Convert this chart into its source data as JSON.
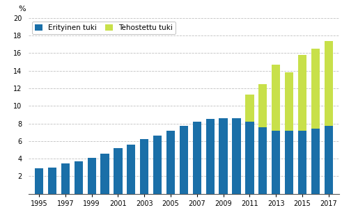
{
  "years": [
    1995,
    1996,
    1997,
    1998,
    1999,
    2000,
    2001,
    2002,
    2003,
    2004,
    2005,
    2006,
    2007,
    2008,
    2009,
    2010,
    2011,
    2012,
    2013,
    2014,
    2015,
    2016,
    2017
  ],
  "erityinen_tuki": [
    2.9,
    3.0,
    3.5,
    3.7,
    4.1,
    4.6,
    5.2,
    5.6,
    6.2,
    6.6,
    7.2,
    7.7,
    8.2,
    8.5,
    8.6,
    8.6,
    8.2,
    7.6,
    7.2,
    7.2,
    7.2,
    7.4,
    7.7
  ],
  "tehostettu_tuki": [
    0,
    0,
    0,
    0,
    0,
    0,
    0,
    0,
    0,
    0,
    0,
    0,
    0,
    0,
    0,
    0,
    3.1,
    4.9,
    7.5,
    6.6,
    8.6,
    9.1,
    9.7
  ],
  "erityinen_color": "#1a6fa8",
  "tehostettu_color": "#c8e04a",
  "ylim": [
    0,
    20
  ],
  "yticks": [
    0,
    2,
    4,
    6,
    8,
    10,
    12,
    14,
    16,
    18,
    20
  ],
  "xticks": [
    1995,
    1997,
    1999,
    2001,
    2003,
    2005,
    2007,
    2009,
    2011,
    2013,
    2015,
    2017
  ],
  "ylabel": "%",
  "legend_erityinen": "Erityinen tuki",
  "legend_tehostettu": "Tehostettu tuki",
  "background_color": "#ffffff",
  "grid_color": "#c0c0c0"
}
